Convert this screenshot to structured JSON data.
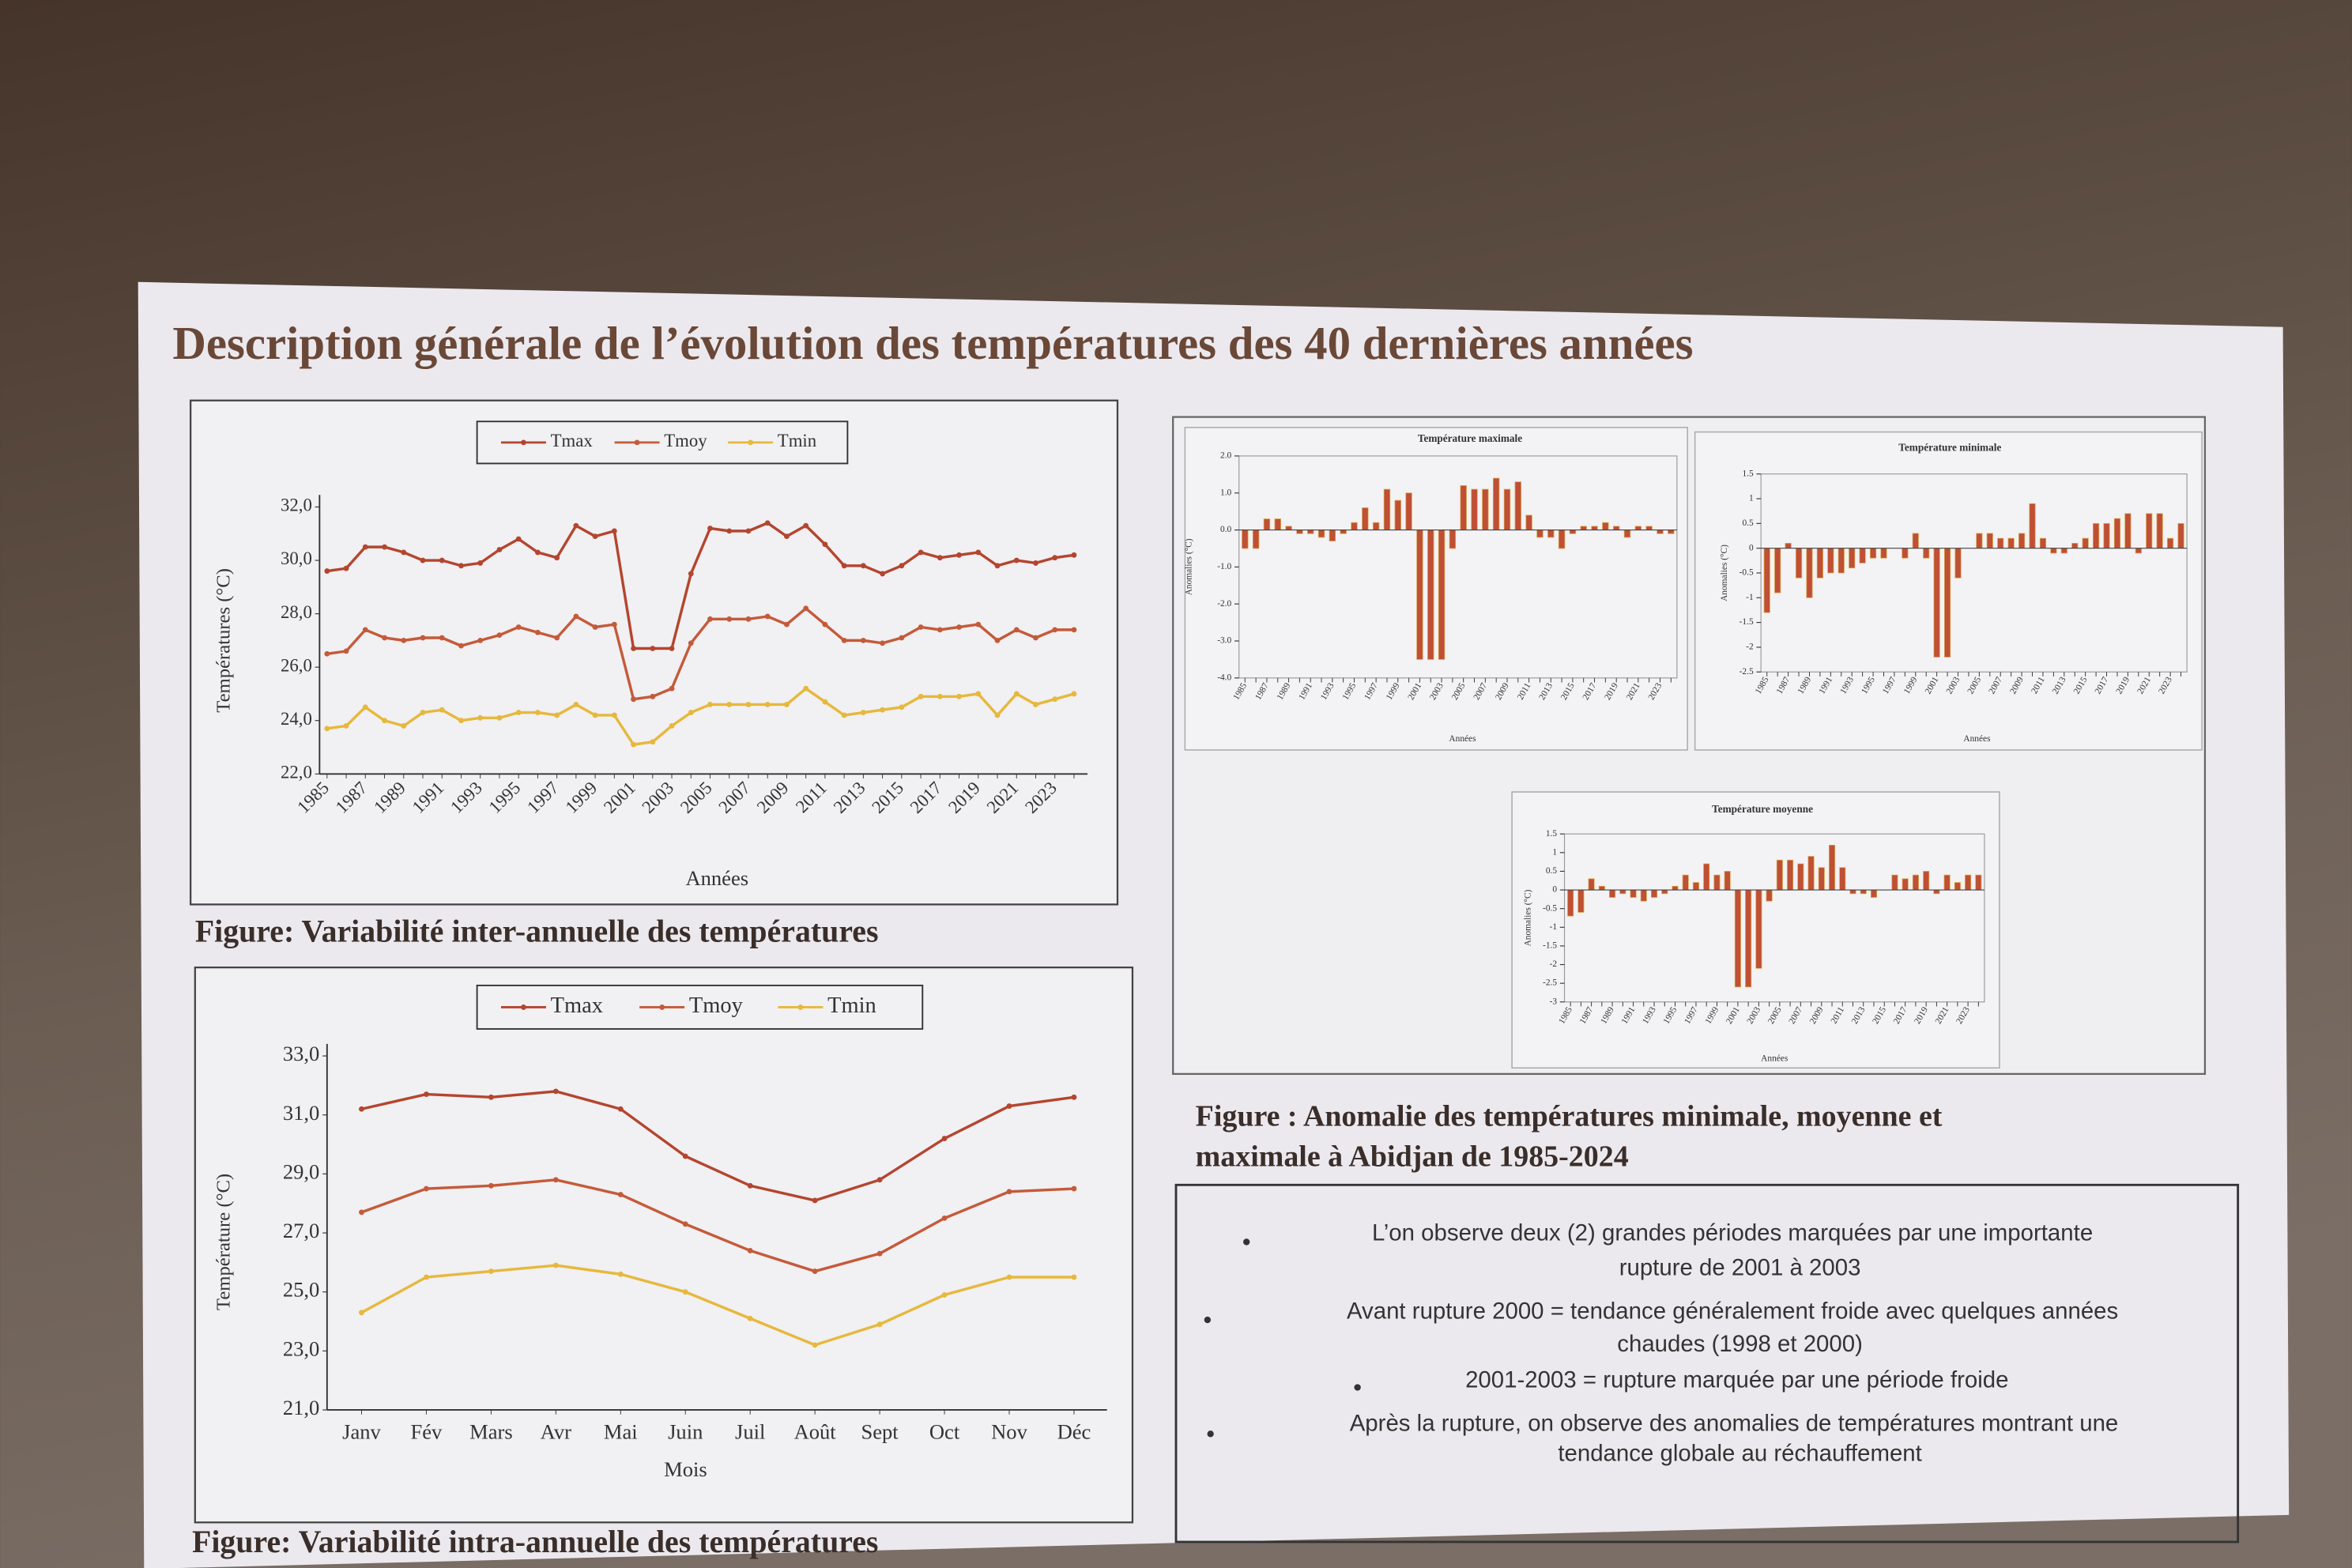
{
  "slide": {
    "title": "Description générale de l’évolution des températures des 40 dernières années",
    "caption_inter": "Figure: Variabilité inter-annuelle des températures",
    "caption_anomaly": [
      "Figure  : Anomalie des températures minimale, moyenne et",
      "maximale à Abidjan de 1985-2024"
    ],
    "caption_intra": "Figure: Variabilité intra-annuelle des températures",
    "bullets": [
      [
        "L’on observe deux (2) grandes périodes marquées par une importante",
        "rupture de 2001 à 2003"
      ],
      [
        "Avant rupture 2000 =  tendance généralement froide avec quelques années",
        "chaudes (1998 et 2000)"
      ],
      [
        "2001-2003 = rupture marquée par une période froide"
      ],
      [
        "Après la rupture, on observe des anomalies de températures montrant une",
        "tendance globale au réchauffement"
      ]
    ]
  },
  "chart_data": [
    {
      "type": "line",
      "x_label": "Années",
      "y_label": "Températures (°C)",
      "categories": [
        "1985",
        null,
        "1987",
        null,
        "1989",
        null,
        "1991",
        null,
        "1993",
        null,
        "1995",
        null,
        "1997",
        null,
        "1999",
        null,
        "2001",
        null,
        "2003",
        null,
        "2005",
        null,
        "2007",
        null,
        "2009",
        null,
        "2011",
        null,
        "2013",
        null,
        "2015",
        null,
        "2017",
        null,
        "2019",
        null,
        "2021",
        null,
        "2023",
        null
      ],
      "ylim": [
        22,
        32
      ],
      "yticks": [
        {
          "value": 22,
          "label": "22,0"
        },
        {
          "value": 24,
          "label": "24,0"
        },
        {
          "value": 26,
          "label": "26,0"
        },
        {
          "value": 28,
          "label": "28,0"
        },
        {
          "value": 30,
          "label": "30,0"
        },
        {
          "value": 32,
          "label": "32,0"
        }
      ],
      "series": [
        {
          "name": "Tmax",
          "color": "#b4452f",
          "values": [
            29.6,
            29.7,
            30.5,
            30.5,
            30.3,
            30.0,
            30.0,
            29.8,
            29.9,
            30.4,
            30.8,
            30.3,
            30.1,
            31.3,
            30.9,
            31.1,
            26.7,
            26.7,
            26.7,
            29.5,
            31.2,
            31.1,
            31.1,
            31.4,
            30.9,
            31.3,
            30.6,
            29.8,
            29.8,
            29.5,
            29.8,
            30.3,
            30.1,
            30.2,
            30.3,
            29.8,
            30.0,
            29.9,
            30.1,
            30.2
          ]
        },
        {
          "name": "Tmoy",
          "color": "#c45a3a",
          "values": [
            26.5,
            26.6,
            27.4,
            27.1,
            27.0,
            27.1,
            27.1,
            26.8,
            27.0,
            27.2,
            27.5,
            27.3,
            27.1,
            27.9,
            27.5,
            27.6,
            24.8,
            24.9,
            25.2,
            26.9,
            27.8,
            27.8,
            27.8,
            27.9,
            27.6,
            28.2,
            27.6,
            27.0,
            27.0,
            26.9,
            27.1,
            27.5,
            27.4,
            27.5,
            27.6,
            27.0,
            27.4,
            27.1,
            27.4,
            27.4
          ]
        },
        {
          "name": "Tmin",
          "color": "#e6b83c",
          "values": [
            23.7,
            23.8,
            24.5,
            24.0,
            23.8,
            24.3,
            24.4,
            24.0,
            24.1,
            24.1,
            24.3,
            24.3,
            24.2,
            24.6,
            24.2,
            24.2,
            23.1,
            23.2,
            23.8,
            24.3,
            24.6,
            24.6,
            24.6,
            24.6,
            24.6,
            25.2,
            24.7,
            24.2,
            24.3,
            24.4,
            24.5,
            24.9,
            24.9,
            24.9,
            25.0,
            24.2,
            25.0,
            24.6,
            24.8,
            25.0
          ]
        }
      ]
    },
    {
      "type": "line",
      "x_label": "Mois",
      "y_label": "Température (°C)",
      "categories": [
        "Janv",
        "Fév",
        "Mars",
        "Avr",
        "Mai",
        "Juin",
        "Juil",
        "Août",
        "Sept",
        "Oct",
        "Nov",
        "Déc"
      ],
      "ylim": [
        21,
        33
      ],
      "yticks": [
        {
          "value": 21,
          "label": "21,0"
        },
        {
          "value": 23,
          "label": "23,0"
        },
        {
          "value": 25,
          "label": "25,0"
        },
        {
          "value": 27,
          "label": "27,0"
        },
        {
          "value": 29,
          "label": "29,0"
        },
        {
          "value": 31,
          "label": "31,0"
        },
        {
          "value": 33,
          "label": "33,0"
        }
      ],
      "series": [
        {
          "name": "Tmax",
          "color": "#b4452f",
          "values": [
            31.2,
            31.7,
            31.6,
            31.8,
            31.2,
            29.6,
            28.6,
            28.1,
            28.8,
            30.2,
            31.3,
            31.6
          ]
        },
        {
          "name": "Tmoy",
          "color": "#c45a3a",
          "values": [
            27.7,
            28.5,
            28.6,
            28.8,
            28.3,
            27.3,
            26.4,
            25.7,
            26.3,
            27.5,
            28.4,
            28.5
          ]
        },
        {
          "name": "Tmin",
          "color": "#e6b83c",
          "values": [
            24.3,
            25.5,
            25.7,
            25.9,
            25.6,
            25.0,
            24.1,
            23.2,
            23.9,
            24.9,
            25.5,
            25.5
          ]
        }
      ]
    },
    {
      "type": "bar",
      "title": "Température maximale",
      "x_label": "Années",
      "y_label": "Anomalies (°C)",
      "color": "#bf4f35",
      "categories": [
        "1985",
        null,
        "1987",
        null,
        "1989",
        null,
        "1991",
        null,
        "1993",
        null,
        "1995",
        null,
        "1997",
        null,
        "1999",
        null,
        "2001",
        null,
        "2003",
        null,
        "2005",
        null,
        "2007",
        null,
        "2009",
        null,
        "2011",
        null,
        "2013",
        null,
        "2015",
        null,
        "2017",
        null,
        "2019",
        null,
        "2021",
        null,
        "2023",
        null
      ],
      "ylim": [
        -4,
        2
      ],
      "yticks": [
        {
          "value": 2,
          "label": "2.0"
        },
        {
          "value": 1,
          "label": "1.0"
        },
        {
          "value": 0,
          "label": "0.0"
        },
        {
          "value": -1,
          "label": "-1.0"
        },
        {
          "value": -2,
          "label": "-2.0"
        },
        {
          "value": -3,
          "label": "-3.0"
        },
        {
          "value": -4,
          "label": "-4.0"
        }
      ],
      "values": [
        -0.5,
        -0.5,
        0.3,
        0.3,
        0.1,
        -0.1,
        -0.1,
        -0.2,
        -0.3,
        -0.1,
        0.2,
        0.6,
        0.2,
        1.1,
        0.8,
        1.0,
        -3.5,
        -3.5,
        -3.5,
        -0.5,
        1.2,
        1.1,
        1.1,
        1.4,
        1.1,
        1.3,
        0.4,
        -0.2,
        -0.2,
        -0.5,
        -0.1,
        0.1,
        0.1,
        0.2,
        0.1,
        -0.2,
        0.1,
        0.1,
        -0.1,
        -0.1
      ]
    },
    {
      "type": "bar",
      "title": "Température minimale",
      "x_label": "Années",
      "y_label": "Anomalies (°C)",
      "color": "#bf4f35",
      "categories": [
        "1985",
        null,
        "1987",
        null,
        "1989",
        null,
        "1991",
        null,
        "1993",
        null,
        "1995",
        null,
        "1997",
        null,
        "1999",
        null,
        "2001",
        null,
        "2003",
        null,
        "2005",
        null,
        "2007",
        null,
        "2009",
        null,
        "2011",
        null,
        "2013",
        null,
        "2015",
        null,
        "2017",
        null,
        "2019",
        null,
        "2021",
        null,
        "2023",
        null
      ],
      "ylim": [
        -2.5,
        1.5
      ],
      "yticks": [
        1.5,
        1,
        0.5,
        0,
        -0.5,
        -1,
        -1.5,
        -2,
        -2.5
      ],
      "values": [
        -1.3,
        -0.9,
        0.1,
        -0.6,
        -1.0,
        -0.6,
        -0.5,
        -0.5,
        -0.4,
        -0.3,
        -0.2,
        -0.2,
        0.0,
        -0.2,
        0.3,
        -0.2,
        -2.2,
        -2.2,
        -0.6,
        0.0,
        0.3,
        0.3,
        0.2,
        0.2,
        0.3,
        0.9,
        0.2,
        -0.1,
        -0.1,
        0.1,
        0.2,
        0.5,
        0.5,
        0.6,
        0.7,
        -0.1,
        0.7,
        0.7,
        0.2,
        0.5
      ]
    },
    {
      "type": "bar",
      "title": "Température moyenne",
      "x_label": "Années",
      "y_label": "Anomalies (°C)",
      "color": "#bf4f35",
      "categories": [
        "1985",
        null,
        "1987",
        null,
        "1989",
        null,
        "1991",
        null,
        "1993",
        null,
        "1995",
        null,
        "1997",
        null,
        "1999",
        null,
        "2001",
        null,
        "2003",
        null,
        "2005",
        null,
        "2007",
        null,
        "2009",
        null,
        "2011",
        null,
        "2013",
        null,
        "2015",
        null,
        "2017",
        null,
        "2019",
        null,
        "2021",
        null,
        "2023",
        null
      ],
      "ylim": [
        -3,
        1.5
      ],
      "yticks": [
        1.5,
        1,
        0.5,
        0,
        -0.5,
        -1,
        -1.5,
        -2,
        -2.5,
        -3
      ],
      "values": [
        -0.7,
        -0.6,
        0.3,
        0.1,
        -0.2,
        -0.1,
        -0.2,
        -0.3,
        -0.2,
        -0.1,
        0.1,
        0.4,
        0.2,
        0.7,
        0.4,
        0.5,
        -2.6,
        -2.6,
        -2.1,
        -0.3,
        0.8,
        0.8,
        0.7,
        0.9,
        0.6,
        1.2,
        0.6,
        -0.1,
        -0.1,
        -0.2,
        0.0,
        0.4,
        0.3,
        0.4,
        0.5,
        -0.1,
        0.4,
        0.2,
        0.4,
        0.4
      ]
    }
  ]
}
